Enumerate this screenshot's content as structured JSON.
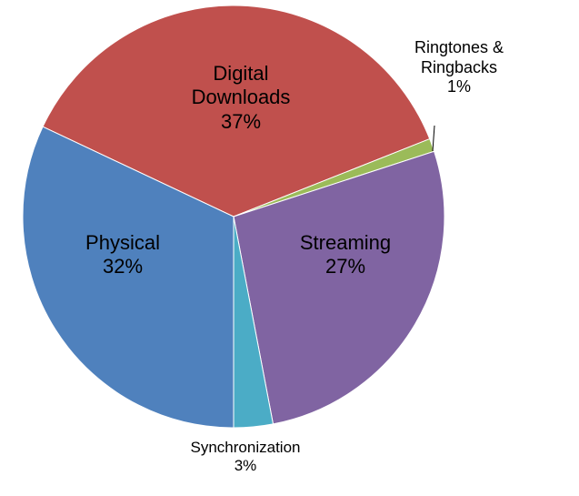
{
  "chart_data": {
    "type": "pie",
    "categories": [
      "Digital Downloads",
      "Ringtones & Ringbacks",
      "Streaming",
      "Synchronization",
      "Physical"
    ],
    "values": [
      37,
      1,
      27,
      3,
      32
    ],
    "value_labels": [
      "37%",
      "1%",
      "27%",
      "3%",
      "32%"
    ],
    "colors": [
      "#c0504d",
      "#9bbb59",
      "#8064a2",
      "#4bacc6",
      "#4f81bd"
    ]
  }
}
